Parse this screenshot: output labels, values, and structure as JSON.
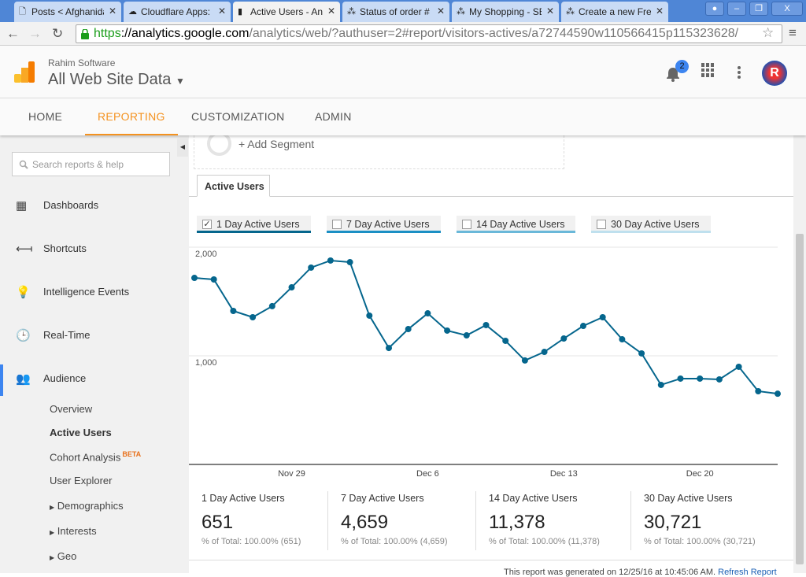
{
  "browser": {
    "tabs": [
      {
        "title": "Posts < Afghanidata",
        "icon": "page-icon"
      },
      {
        "title": "Cloudflare Apps: ",
        "icon": "cloudflare-icon"
      },
      {
        "title": "Active Users - Ana",
        "icon": "analytics-icon",
        "active": true
      },
      {
        "title": "Status of order #",
        "icon": "network-icon"
      },
      {
        "title": "My Shopping - SE",
        "icon": "network-icon"
      },
      {
        "title": "Create a new Fre",
        "icon": "network-icon"
      }
    ],
    "url_scheme": "https",
    "url_domain": "://analytics.google.com",
    "url_path": "/analytics/web/?authuser=2#report/visitors-actives/a72744590w110566415p115323628/"
  },
  "header": {
    "account": "Rahim Software",
    "property": "All Web Site Data",
    "notifications": "2",
    "brand_color": "#f4921f"
  },
  "nav": {
    "tabs": [
      "HOME",
      "REPORTING",
      "CUSTOMIZATION",
      "ADMIN"
    ],
    "active": "REPORTING"
  },
  "sidebar": {
    "search_placeholder": "Search reports & help",
    "items": [
      {
        "label": "Dashboards",
        "icon": "grid-icon"
      },
      {
        "label": "Shortcuts",
        "icon": "shortcut-arrow-icon"
      },
      {
        "label": "Intelligence Events",
        "icon": "lightbulb-icon"
      },
      {
        "label": "Real-Time",
        "icon": "clock-icon"
      },
      {
        "label": "Audience",
        "icon": "people-icon",
        "active": true
      }
    ],
    "audience_sub": [
      "Overview",
      "Active Users",
      "Cohort Analysis",
      "User Explorer",
      "Demographics",
      "Interests",
      "Geo"
    ],
    "beta": "BETA"
  },
  "main": {
    "add_segment": "+ Add Segment",
    "tab": "Active Users",
    "metrics": [
      {
        "label": "1 Day Active Users",
        "checked": true,
        "color": "#05668d"
      },
      {
        "label": "7 Day Active Users",
        "checked": false,
        "color": "#1b8fc4"
      },
      {
        "label": "14 Day Active Users",
        "checked": false,
        "color": "#6ab8d9"
      },
      {
        "label": "30 Day Active Users",
        "checked": false,
        "color": "#bfe0ee"
      }
    ],
    "summary": [
      {
        "label": "1 Day Active Users",
        "value": "651",
        "pct": "% of Total: 100.00% (651)"
      },
      {
        "label": "7 Day Active Users",
        "value": "4,659",
        "pct": "% of Total: 100.00% (4,659)"
      },
      {
        "label": "14 Day Active Users",
        "value": "11,378",
        "pct": "% of Total: 100.00% (11,378)"
      },
      {
        "label": "30 Day Active Users",
        "value": "30,721",
        "pct": "% of Total: 100.00% (30,721)"
      }
    ],
    "footer": "This report was generated on 12/25/16 at 10:45:06 AM.",
    "refresh": "Refresh Report"
  },
  "chart_data": {
    "type": "line",
    "x": [
      "Nov 24",
      "Nov 25",
      "Nov 26",
      "Nov 27",
      "Nov 28",
      "Nov 29",
      "Nov 30",
      "Dec 1",
      "Dec 2",
      "Dec 3",
      "Dec 4",
      "Dec 5",
      "Dec 6",
      "Dec 7",
      "Dec 8",
      "Dec 9",
      "Dec 10",
      "Dec 11",
      "Dec 12",
      "Dec 13",
      "Dec 14",
      "Dec 15",
      "Dec 16",
      "Dec 17",
      "Dec 18",
      "Dec 19",
      "Dec 20",
      "Dec 21",
      "Dec 22",
      "Dec 23",
      "Dec 24"
    ],
    "series": [
      {
        "name": "1 Day Active Users",
        "values": [
          1717,
          1703,
          1413,
          1355,
          1457,
          1630,
          1812,
          1877,
          1862,
          1370,
          1072,
          1246,
          1391,
          1232,
          1188,
          1283,
          1138,
          957,
          1036,
          1159,
          1275,
          1355,
          1152,
          1022,
          732,
          790,
          790,
          783,
          899,
          674,
          651
        ],
        "color": "#05668d"
      }
    ],
    "xticks": [
      "Nov 29",
      "Dec 6",
      "Dec 13",
      "Dec 20"
    ],
    "yticks": [
      "2,000",
      "1,000"
    ],
    "ylim": [
      0,
      2000
    ],
    "grid": true
  }
}
